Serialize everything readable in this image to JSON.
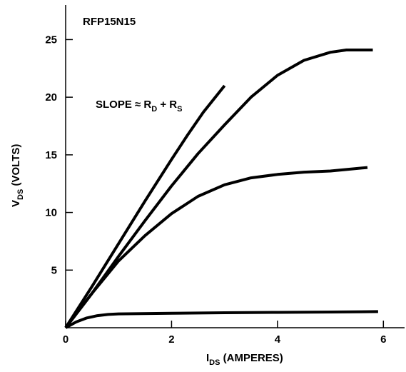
{
  "chart_data": {
    "type": "line",
    "title": "RFP15N15",
    "xlabel": {
      "main": "I",
      "sub": "DS",
      "rest": " (AMPERES)"
    },
    "ylabel": {
      "main": "V",
      "sub": "DS",
      "rest": " (VOLTS)"
    },
    "xlim": [
      0,
      6.4
    ],
    "ylim": [
      0,
      28
    ],
    "xticks": [
      0,
      2,
      4,
      6
    ],
    "yticks": [
      5,
      10,
      15,
      20,
      25
    ],
    "annotation": {
      "prefix": "SLOPE ≈ R",
      "sub1": "D",
      "mid": " + R",
      "sub2": "S"
    },
    "series": [
      {
        "x": [
          0,
          0.5,
          1.0,
          1.5,
          2.0,
          2.3,
          2.6,
          3.0
        ],
        "y": [
          0,
          3.6,
          7.3,
          11.0,
          14.6,
          16.7,
          18.7,
          21.0
        ]
      },
      {
        "x": [
          0,
          0.5,
          1.0,
          1.5,
          2.0,
          2.5,
          3.0,
          3.5,
          4.0,
          4.5,
          5.0,
          5.3,
          5.8
        ],
        "y": [
          0,
          3.0,
          6.2,
          9.3,
          12.3,
          15.1,
          17.6,
          20.0,
          21.9,
          23.2,
          23.9,
          24.1,
          24.1
        ]
      },
      {
        "x": [
          0,
          0.5,
          1.0,
          1.5,
          2.0,
          2.5,
          3.0,
          3.5,
          4.0,
          4.5,
          5.0,
          5.7
        ],
        "y": [
          0,
          3.0,
          5.8,
          8.0,
          9.9,
          11.4,
          12.4,
          13.0,
          13.3,
          13.5,
          13.6,
          13.9
        ]
      },
      {
        "x": [
          0,
          0.2,
          0.4,
          0.6,
          0.8,
          1.0,
          2.0,
          3.0,
          4.0,
          5.0,
          5.9
        ],
        "y": [
          0,
          0.5,
          0.85,
          1.05,
          1.15,
          1.2,
          1.25,
          1.3,
          1.33,
          1.36,
          1.4
        ]
      }
    ]
  }
}
